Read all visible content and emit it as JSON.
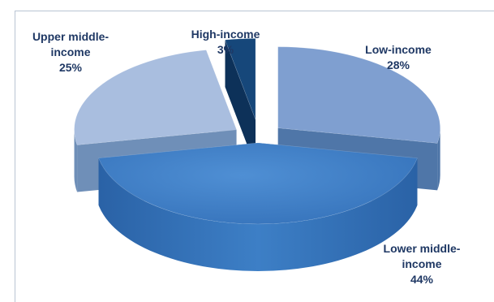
{
  "chart_data": {
    "type": "pie",
    "title": "",
    "slices": [
      {
        "name": "Low-income",
        "label_lines": [
          "Low-income"
        ],
        "value": 28,
        "pct_label": "28%",
        "color": "#7f9fd0",
        "side_color": "#4f76a8",
        "exploded": true
      },
      {
        "name": "Lower middle-income",
        "label_lines": [
          "Lower middle-",
          "income"
        ],
        "value": 44,
        "pct_label": "44%",
        "color": "#3d7cc4",
        "side_color": "#2a62a6",
        "exploded": false
      },
      {
        "name": "Upper middle-income",
        "label_lines": [
          "Upper middle-",
          "income"
        ],
        "value": 25,
        "pct_label": "25%",
        "color": "#a9bedf",
        "side_color": "#6f8fb8",
        "exploded": true
      },
      {
        "name": "High-income",
        "label_lines": [
          "High-income"
        ],
        "value": 3,
        "pct_label": "3%",
        "color": "#16477a",
        "side_color": "#0d3159",
        "exploded": true
      }
    ],
    "legend": "none",
    "style": "3d-exploded"
  }
}
